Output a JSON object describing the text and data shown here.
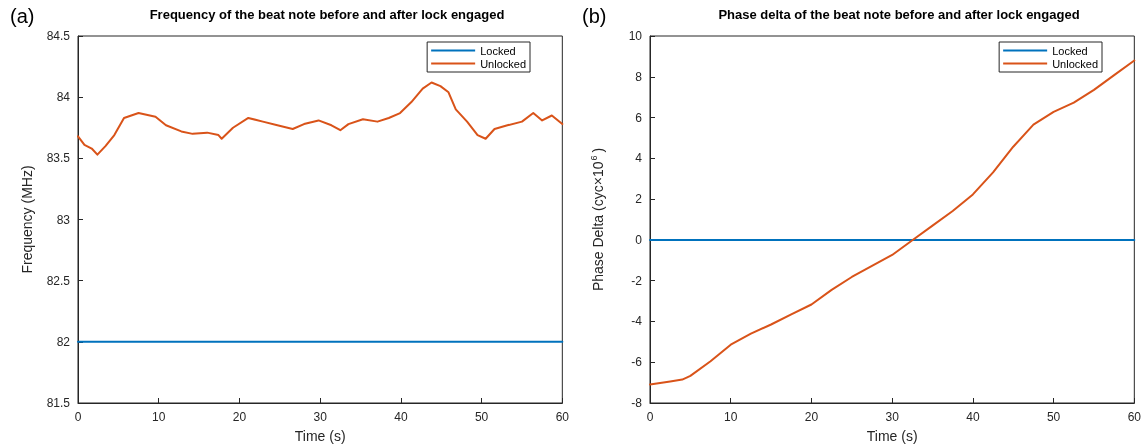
{
  "chart_data": [
    {
      "type": "line",
      "title": "Frequency of the beat note before and after lock engaged",
      "xlabel": "Time (s)",
      "ylabel": "Frequency (MHz)",
      "annotations": [
        "(a)"
      ],
      "xlim": [
        0,
        60
      ],
      "xticks": [
        0,
        10,
        20,
        30,
        40,
        50,
        60
      ],
      "ylim": [
        81.5,
        84.5
      ],
      "yticks": [
        81.5,
        82,
        82.5,
        83,
        83.5,
        84,
        84.5
      ],
      "legend": "top right",
      "grid": false,
      "marker": "none",
      "line_style": "solid",
      "series": [
        {
          "name": "Locked",
          "color": "#0072bd",
          "x": [
            0,
            60
          ],
          "values": [
            82,
            82
          ]
        },
        {
          "name": "Unlocked",
          "color": "#d95319",
          "x": [
            0,
            0.8,
            1.7,
            2.4,
            3.4,
            4.5,
            5.7,
            7.5,
            9.6,
            10.9,
            12.8,
            14.2,
            16,
            17.4,
            17.8,
            19.2,
            21.1,
            22.9,
            24.7,
            26.6,
            28,
            29.8,
            31.4,
            32.5,
            33.5,
            35.3,
            37.1,
            38.5,
            39.9,
            41.3,
            42.7,
            43.8,
            44.9,
            45.9,
            46.8,
            48.2,
            49.5,
            50.5,
            51.6,
            53.2,
            55,
            56.4,
            57.5,
            58.7,
            60
          ],
          "values": [
            83.68,
            83.61,
            83.58,
            83.53,
            83.6,
            83.69,
            83.83,
            83.87,
            83.84,
            83.77,
            83.72,
            83.7,
            83.71,
            83.69,
            83.66,
            83.75,
            83.83,
            83.8,
            83.77,
            83.74,
            83.78,
            83.81,
            83.77,
            83.73,
            83.78,
            83.82,
            83.8,
            83.83,
            83.87,
            83.96,
            84.07,
            84.12,
            84.09,
            84.04,
            83.9,
            83.8,
            83.69,
            83.66,
            83.74,
            83.77,
            83.8,
            83.87,
            83.81,
            83.85,
            83.78
          ]
        }
      ]
    },
    {
      "type": "line",
      "title": "Phase delta of the beat note before and after lock engaged",
      "xlabel": "Time (s)",
      "ylabel": "Phase Delta (cyc×10$^{6}$)",
      "annotations": [
        "(b)"
      ],
      "xlim": [
        0,
        60
      ],
      "xticks": [
        0,
        10,
        20,
        30,
        40,
        50,
        60
      ],
      "ylim": [
        -8,
        10
      ],
      "yticks": [
        -8,
        -6,
        -4,
        -2,
        0,
        2,
        4,
        6,
        8,
        10
      ],
      "legend": "top right",
      "grid": false,
      "marker": "none",
      "line_style": "solid",
      "series": [
        {
          "name": "Locked",
          "color": "#0072bd",
          "x": [
            0,
            60
          ],
          "values": [
            0,
            0
          ]
        },
        {
          "name": "Unlocked",
          "color": "#d95319",
          "x": [
            0,
            2.5,
            4,
            5,
            7.5,
            10,
            12.5,
            15,
            17.5,
            20,
            22.5,
            25,
            27.5,
            30,
            32.5,
            35,
            37.5,
            40,
            42.5,
            45,
            47.5,
            50,
            52.5,
            55,
            57.5,
            60
          ],
          "values": [
            -7.09,
            -6.94,
            -6.85,
            -6.67,
            -5.95,
            -5.14,
            -4.6,
            -4.15,
            -3.65,
            -3.17,
            -2.45,
            -1.82,
            -1.28,
            -0.74,
            -0.02,
            0.7,
            1.42,
            2.23,
            3.31,
            4.57,
            5.65,
            6.28,
            6.73,
            7.36,
            8.08,
            8.8
          ]
        }
      ]
    }
  ]
}
